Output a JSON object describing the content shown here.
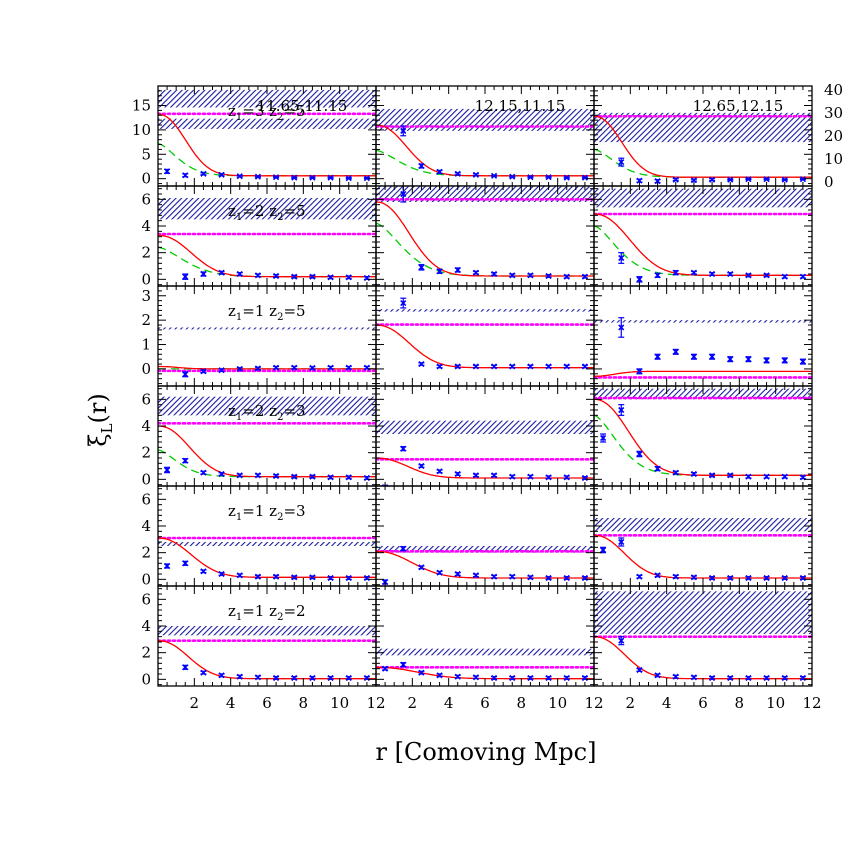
{
  "chart_data": {
    "type": "line",
    "title": "",
    "xlabel": "r [Comoving Mpc]",
    "ylabel": {
      "main": "ξ",
      "sub": "L",
      "tail": "(r)"
    },
    "xlim": [
      0,
      12
    ],
    "xticks": [
      2,
      4,
      6,
      8,
      10,
      12
    ],
    "xtick_labels": [
      "2",
      "4",
      "6",
      "8",
      "10",
      "12"
    ],
    "columns": [
      "11.65,11.15",
      "12.15,11.15",
      "12.65,12.15"
    ],
    "right_axis_row0": {
      "ylim": [
        0,
        40
      ],
      "ticks": [
        0,
        10,
        20,
        30,
        40
      ],
      "tick_labels": [
        "0",
        "10",
        "20",
        "30",
        "40"
      ]
    },
    "rows": [
      {
        "label": {
          "z1": "3",
          "z2": "5"
        },
        "ylim": [
          -1.5,
          19
        ],
        "ticks": [
          0,
          5,
          10,
          15
        ],
        "tick_labels": [
          "0",
          "5",
          "10",
          "15"
        ]
      },
      {
        "label": {
          "z1": "2",
          "z2": "5"
        },
        "ylim": [
          -0.5,
          7
        ],
        "ticks": [
          0,
          2,
          4,
          6
        ],
        "tick_labels": [
          "0",
          "2",
          "4",
          "6"
        ]
      },
      {
        "label": {
          "z1": "1",
          "z2": "5"
        },
        "ylim": [
          -0.7,
          3.4
        ],
        "ticks": [
          0,
          1,
          2,
          3
        ],
        "tick_labels": [
          "0",
          "1",
          "2",
          "3"
        ]
      },
      {
        "label": {
          "z1": "2",
          "z2": "3"
        },
        "ylim": [
          -0.5,
          7
        ],
        "ticks": [
          0,
          2,
          4,
          6
        ],
        "tick_labels": [
          "0",
          "2",
          "4",
          "6"
        ]
      },
      {
        "label": {
          "z1": "1",
          "z2": "3"
        },
        "ylim": [
          -0.5,
          7
        ],
        "ticks": [
          0,
          2,
          4,
          6
        ],
        "tick_labels": [
          "0",
          "2",
          "4",
          "6"
        ]
      },
      {
        "label": {
          "z1": "1",
          "z2": "2"
        },
        "ylim": [
          -0.5,
          7
        ],
        "ticks": [
          0,
          2,
          4,
          6
        ],
        "tick_labels": [
          "0",
          "2",
          "4",
          "6"
        ]
      }
    ],
    "colors": {
      "model": "#ff0000",
      "dashed": "#00cc00",
      "dotted": "#ff00ff",
      "points": "#0000ff",
      "band": "#1a1aa0"
    },
    "points_x": [
      0.5,
      1.5,
      2.5,
      3.5,
      4.5,
      5.5,
      6.5,
      7.5,
      8.5,
      9.5,
      10.5,
      11.5
    ],
    "panels": [
      {
        "row": 0,
        "col": 0,
        "band": [
          14.6,
          18.2
        ],
        "band2": [
          10.2,
          12.3
        ],
        "dotted": 13.3,
        "model_amp": 13.2,
        "model_tail": 0.6,
        "model_r0": 2.0,
        "dashed_amp": 7.2,
        "dashed_r0": 1.5,
        "points": [
          1.5,
          0.7,
          1.0,
          0.8,
          0.5,
          0.4,
          0.3,
          0.2,
          0.2,
          0.2,
          0.1,
          0.1
        ],
        "errors": [
          0.4,
          0.3,
          0.2,
          0.2,
          0.15,
          0.1,
          0.1,
          0.1,
          0.1,
          0.1,
          0.1,
          0.1
        ]
      },
      {
        "row": 0,
        "col": 1,
        "band": [
          9.8,
          14.3
        ],
        "dotted": 10.7,
        "model_amp": 11.0,
        "model_tail": 0.6,
        "model_r0": 2.2,
        "dashed_amp": 5.8,
        "dashed_r0": 1.8,
        "points": [
          null,
          9.8,
          2.6,
          1.4,
          1.0,
          0.8,
          0.6,
          0.4,
          0.3,
          0.3,
          0.2,
          0.2
        ],
        "errors": [
          0,
          1.0,
          0.4,
          0.3,
          0.2,
          0.2,
          0.1,
          0.1,
          0.1,
          0.1,
          0.1,
          0.1
        ]
      },
      {
        "row": 0,
        "col": 2,
        "band": [
          7.5,
          13.5
        ],
        "dotted": 12.8,
        "model_amp": 12.8,
        "model_tail": 0.3,
        "model_r0": 2.0,
        "dashed_amp": 6.0,
        "dashed_r0": 1.6,
        "points": [
          null,
          3.4,
          -0.4,
          -0.5,
          -0.2,
          -0.3,
          -0.2,
          -0.2,
          -0.1,
          -0.1,
          -0.2,
          -0.1
        ],
        "errors": [
          0,
          0.8,
          0.3,
          0.3,
          0.2,
          0.2,
          0.2,
          0.1,
          0.1,
          0.1,
          0.1,
          0.1
        ]
      },
      {
        "row": 1,
        "col": 0,
        "band": [
          4.5,
          6.1
        ],
        "dotted": 3.4,
        "model_amp": 3.3,
        "model_tail": 0.2,
        "model_r0": 2.4,
        "dashed_amp": 2.4,
        "dashed_r0": 2.0,
        "points": [
          null,
          0.2,
          0.4,
          0.5,
          0.4,
          0.3,
          0.25,
          0.2,
          0.2,
          0.15,
          0.15,
          0.1
        ],
        "errors": [
          0,
          0.2,
          0.15,
          0.1,
          0.1,
          0.1,
          0.1,
          0.1,
          0.1,
          0.1,
          0.1,
          0.1
        ]
      },
      {
        "row": 1,
        "col": 1,
        "band": [
          5.8,
          7.0
        ],
        "dotted": 6.0,
        "model_amp": 5.8,
        "model_tail": 0.25,
        "model_r0": 2.4,
        "dashed_amp": 4.2,
        "dashed_r0": 2.0,
        "points": [
          null,
          6.4,
          0.9,
          0.6,
          0.7,
          0.5,
          0.4,
          0.3,
          0.3,
          0.25,
          0.2,
          0.2
        ],
        "errors": [
          0,
          0.6,
          0.2,
          0.15,
          0.15,
          0.1,
          0.1,
          0.1,
          0.1,
          0.1,
          0.1,
          0.1
        ]
      },
      {
        "row": 1,
        "col": 2,
        "band": [
          5.4,
          6.8
        ],
        "dotted": 4.9,
        "model_amp": 4.9,
        "model_tail": 0.3,
        "model_r0": 2.6,
        "dashed_amp": 4.0,
        "dashed_r0": 1.8,
        "points": [
          null,
          1.6,
          0.0,
          0.3,
          0.5,
          0.5,
          0.4,
          0.4,
          0.3,
          0.3,
          0.2,
          0.2
        ],
        "errors": [
          0,
          0.4,
          0.2,
          0.15,
          0.15,
          0.1,
          0.1,
          0.1,
          0.1,
          0.1,
          0.1,
          0.1
        ]
      },
      {
        "row": 2,
        "col": 0,
        "band": [
          1.62,
          1.7
        ],
        "dotted": -0.08,
        "model_amp": 0.1,
        "model_tail": 0.0,
        "model_r0": 1.5,
        "dashed_amp": 0.0,
        "dashed_r0": 1.5,
        "points": [
          null,
          -0.22,
          -0.1,
          -0.05,
          0.0,
          0.02,
          0.05,
          0.05,
          0.04,
          0.05,
          0.05,
          0.05
        ],
        "errors": [
          0,
          0.1,
          0.05,
          0.05,
          0.05,
          0.05,
          0.05,
          0.05,
          0.05,
          0.05,
          0.05,
          0.05
        ]
      },
      {
        "row": 2,
        "col": 1,
        "band": [
          2.35,
          2.45
        ],
        "dotted": 1.82,
        "model_amp": 1.8,
        "model_tail": 0.05,
        "model_r0": 2.4,
        "dashed_amp": 1.8,
        "dashed_r0": 2.4,
        "points": [
          null,
          2.7,
          0.2,
          0.1,
          0.1,
          0.1,
          0.1,
          0.1,
          0.1,
          0.1,
          0.1,
          0.1
        ],
        "errors": [
          0,
          0.2,
          0.05,
          0.05,
          0.05,
          0.05,
          0.05,
          0.05,
          0.05,
          0.05,
          0.05,
          0.05
        ]
      },
      {
        "row": 2,
        "col": 2,
        "band": [
          1.9,
          2.0
        ],
        "dotted": -0.35,
        "model_amp": -0.3,
        "model_tail": -0.1,
        "model_r0": 1.5,
        "dashed_amp": -0.3,
        "dashed_r0": 1.5,
        "points": [
          null,
          1.7,
          -0.1,
          0.5,
          0.7,
          0.5,
          0.5,
          0.4,
          0.4,
          0.35,
          0.35,
          0.3
        ],
        "errors": [
          0,
          0.4,
          0.1,
          0.1,
          0.1,
          0.1,
          0.1,
          0.1,
          0.1,
          0.1,
          0.1,
          0.1
        ]
      },
      {
        "row": 3,
        "col": 0,
        "band": [
          4.8,
          6.2
        ],
        "dotted": 4.2,
        "model_amp": 4.0,
        "model_tail": 0.2,
        "model_r0": 2.3,
        "dashed_amp": 2.2,
        "dashed_r0": 1.5,
        "points": [
          0.7,
          1.4,
          0.5,
          0.4,
          0.3,
          0.3,
          0.25,
          0.2,
          0.2,
          0.15,
          0.15,
          0.1
        ],
        "errors": [
          0.2,
          0.15,
          0.1,
          0.1,
          0.1,
          0.1,
          0.1,
          0.1,
          0.1,
          0.1,
          0.1,
          0.1
        ]
      },
      {
        "row": 3,
        "col": 1,
        "band": [
          3.4,
          4.4
        ],
        "dotted": 1.5,
        "model_amp": 1.6,
        "model_tail": 0.1,
        "model_r0": 2.3,
        "dashed_amp": 1.6,
        "dashed_r0": 2.3,
        "points": [
          -0.6,
          2.3,
          1.0,
          0.6,
          0.4,
          0.3,
          0.3,
          0.2,
          0.2,
          0.15,
          0.15,
          0.1
        ],
        "errors": [
          0.15,
          0.15,
          0.1,
          0.1,
          0.1,
          0.1,
          0.1,
          0.1,
          0.1,
          0.1,
          0.1,
          0.1
        ]
      },
      {
        "row": 3,
        "col": 2,
        "band": [
          6.0,
          6.8
        ],
        "dotted": 6.1,
        "model_amp": 6.0,
        "model_tail": 0.3,
        "model_r0": 2.5,
        "dashed_amp": 4.8,
        "dashed_r0": 1.8,
        "points": [
          3.1,
          5.2,
          1.9,
          0.8,
          0.5,
          0.4,
          0.3,
          0.3,
          0.2,
          0.2,
          0.2,
          0.15
        ],
        "errors": [
          0.3,
          0.4,
          0.2,
          0.15,
          0.1,
          0.1,
          0.1,
          0.1,
          0.1,
          0.1,
          0.1,
          0.1
        ]
      },
      {
        "row": 4,
        "col": 0,
        "band": [
          2.5,
          2.8
        ],
        "dotted": 3.1,
        "model_amp": 3.1,
        "model_tail": 0.15,
        "model_r0": 2.4,
        "dashed_amp": 3.1,
        "dashed_r0": 2.4,
        "points": [
          1.0,
          1.2,
          0.6,
          0.4,
          0.3,
          0.2,
          0.2,
          0.15,
          0.15,
          0.1,
          0.1,
          0.1
        ],
        "errors": [
          0.15,
          0.15,
          0.1,
          0.1,
          0.1,
          0.1,
          0.1,
          0.1,
          0.1,
          0.1,
          0.1,
          0.1
        ]
      },
      {
        "row": 4,
        "col": 1,
        "band": [
          2.0,
          2.5
        ],
        "dotted": 2.1,
        "model_amp": 2.1,
        "model_tail": 0.1,
        "model_r0": 2.6,
        "dashed_amp": 2.1,
        "dashed_r0": 2.6,
        "points": [
          -0.2,
          2.3,
          0.9,
          0.5,
          0.4,
          0.3,
          0.2,
          0.2,
          0.15,
          0.1,
          0.1,
          0.1
        ],
        "errors": [
          0.15,
          0.15,
          0.1,
          0.1,
          0.1,
          0.1,
          0.1,
          0.1,
          0.1,
          0.1,
          0.1,
          0.1
        ]
      },
      {
        "row": 4,
        "col": 2,
        "band": [
          3.6,
          4.6
        ],
        "dotted": 3.3,
        "model_amp": 3.3,
        "model_tail": 0.1,
        "model_r0": 2.2,
        "dashed_amp": 3.3,
        "dashed_r0": 2.2,
        "points": [
          2.2,
          2.8,
          0.2,
          0.3,
          0.2,
          0.15,
          0.1,
          0.1,
          0.1,
          0.1,
          0.1,
          0.1
        ],
        "errors": [
          0.2,
          0.3,
          0.1,
          0.1,
          0.1,
          0.1,
          0.1,
          0.1,
          0.1,
          0.1,
          0.1,
          0.1
        ]
      },
      {
        "row": 5,
        "col": 0,
        "band": [
          3.3,
          4.0
        ],
        "dotted": 2.9,
        "model_amp": 2.9,
        "model_tail": 0.05,
        "model_r0": 2.2,
        "dashed_amp": 2.9,
        "dashed_r0": 2.2,
        "points": [
          null,
          0.9,
          0.5,
          0.3,
          0.2,
          0.15,
          0.1,
          0.1,
          0.1,
          0.1,
          0.1,
          0.1
        ],
        "errors": [
          0,
          0.15,
          0.1,
          0.1,
          0.1,
          0.1,
          0.1,
          0.1,
          0.1,
          0.1,
          0.1,
          0.1
        ]
      },
      {
        "row": 5,
        "col": 1,
        "band": [
          1.8,
          2.3
        ],
        "dotted": 0.9,
        "model_amp": 0.9,
        "model_tail": 0.05,
        "model_r0": 3.0,
        "dashed_amp": 0.9,
        "dashed_r0": 3.0,
        "points": [
          0.8,
          1.1,
          0.5,
          0.3,
          0.2,
          0.15,
          0.1,
          0.1,
          0.1,
          0.1,
          0.1,
          0.1
        ],
        "errors": [
          0.1,
          0.15,
          0.1,
          0.1,
          0.1,
          0.1,
          0.1,
          0.1,
          0.1,
          0.1,
          0.1,
          0.1
        ]
      },
      {
        "row": 5,
        "col": 2,
        "band": [
          3.4,
          6.6
        ],
        "dotted": 3.2,
        "model_amp": 3.2,
        "model_tail": 0.05,
        "model_r0": 2.2,
        "dashed_amp": 3.2,
        "dashed_r0": 2.2,
        "points": [
          null,
          2.9,
          0.7,
          0.3,
          0.2,
          0.15,
          0.1,
          0.1,
          0.1,
          0.1,
          0.1,
          0.1
        ],
        "errors": [
          0,
          0.3,
          0.1,
          0.1,
          0.1,
          0.1,
          0.1,
          0.1,
          0.1,
          0.1,
          0.1,
          0.1
        ]
      }
    ]
  }
}
